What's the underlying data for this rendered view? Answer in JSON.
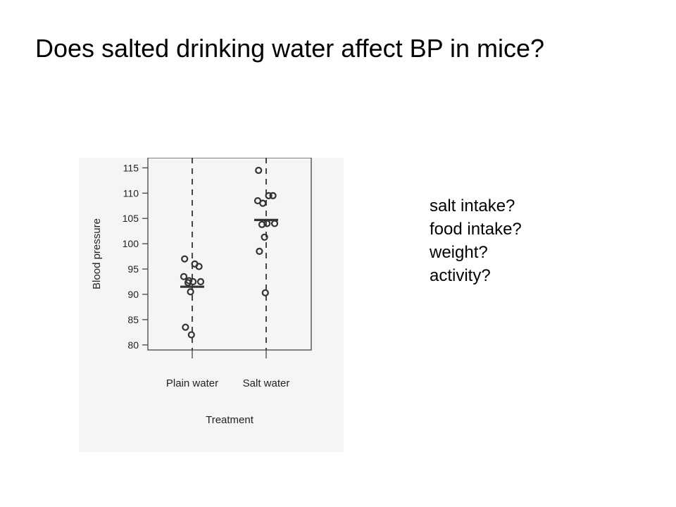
{
  "slide": {
    "title": "Does salted drinking water affect BP in mice?"
  },
  "questions": [
    "salt intake?",
    "food intake?",
    "weight?",
    "activity?"
  ],
  "chart_data": {
    "type": "scatter",
    "subtype": "strip-plot",
    "xlabel": "Treatment",
    "ylabel": "Blood pressure",
    "categories": [
      "Plain water",
      "Salt water"
    ],
    "ylim": [
      79,
      117
    ],
    "yticks": [
      80,
      85,
      90,
      95,
      100,
      105,
      110,
      115
    ],
    "grid": false,
    "legend": "none",
    "groups": [
      {
        "category": "Plain water",
        "points": [
          97,
          96,
          95.5,
          93.5,
          92.7,
          92.5,
          92.5,
          92.3,
          90.5,
          83.5,
          82
        ],
        "mean": 91.5
      },
      {
        "category": "Salt water",
        "points": [
          114.5,
          109.5,
          109.5,
          108.5,
          108,
          104,
          104,
          103.8,
          101.3,
          98.5,
          90.3
        ],
        "mean": 104.7
      }
    ],
    "colors": {
      "marker": "#333333",
      "axis": "#333333",
      "panel": "#f5f5f5"
    }
  }
}
